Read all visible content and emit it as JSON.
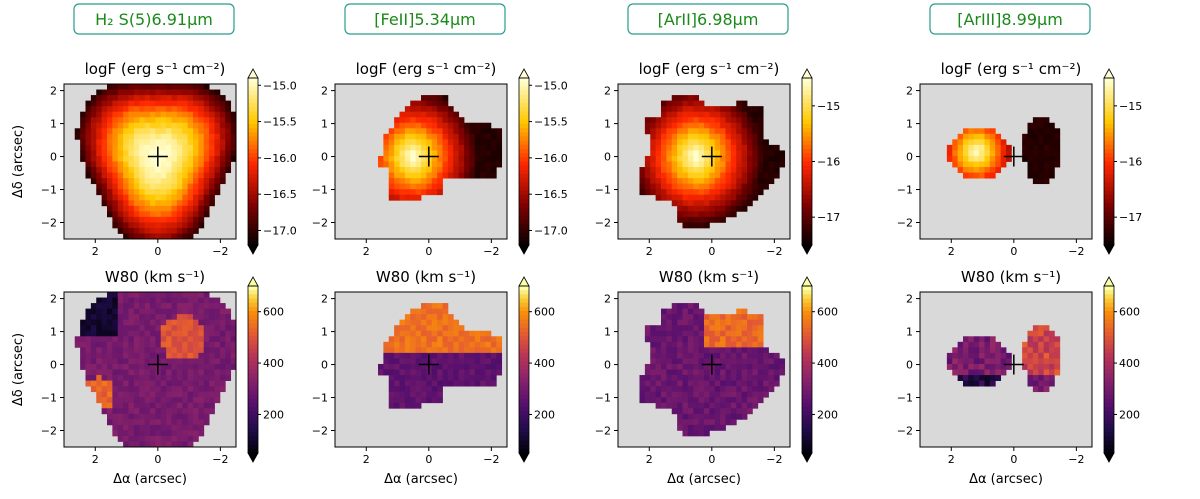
{
  "figure": {
    "colors": {
      "background": "#d9d9d9",
      "line_label": "#1a8a1a",
      "label_box": "#2a9d8f"
    }
  },
  "chart_data": [
    {
      "type": "heatmap",
      "column": 1,
      "line_label": "H₂ S(5)6.91μm",
      "panels": [
        {
          "quantity": "flux",
          "title": "logF (erg s⁻¹ cm⁻²)",
          "colorscale": "hot",
          "clim": [
            -17.2,
            -14.9
          ],
          "colorbar_ticks": [
            -15.0,
            -15.5,
            -16.0,
            -16.5,
            -17.0
          ],
          "colorbar_tick_labels": [
            "−15.0",
            "−15.5",
            "−16.0",
            "−16.5",
            "−17.0"
          ],
          "ylabel": "Δδ (arcsec)",
          "xlabel": "",
          "xlim": [
            3.0,
            -2.5
          ],
          "ylim": [
            -2.5,
            2.2
          ],
          "xticks": [
            2,
            0,
            -2
          ],
          "yticks": [
            2,
            1,
            0,
            -1,
            -2
          ],
          "xtick_labels": [
            "2",
            "0",
            "−2"
          ],
          "ytick_labels": [
            "2",
            "1",
            "0",
            "−1",
            "−2"
          ],
          "center_marker": [
            0,
            0
          ]
        },
        {
          "quantity": "W80",
          "title": "W80 (km s⁻¹)",
          "colorscale": "inferno",
          "clim": [
            50,
            700
          ],
          "colorbar_ticks": [
            600,
            400,
            200
          ],
          "colorbar_tick_labels": [
            "600",
            "400",
            "200"
          ],
          "ylabel": "Δδ (arcsec)",
          "xlabel": "Δα (arcsec)",
          "xlim": [
            3.0,
            -2.5
          ],
          "ylim": [
            -2.5,
            2.2
          ],
          "xticks": [
            2,
            0,
            -2
          ],
          "yticks": [
            2,
            1,
            0,
            -1,
            -2
          ],
          "xtick_labels": [
            "2",
            "0",
            "−2"
          ],
          "ytick_labels": [
            "2",
            "1",
            "0",
            "−1",
            "−2"
          ],
          "center_marker": [
            0,
            0
          ]
        }
      ]
    },
    {
      "type": "heatmap",
      "column": 2,
      "line_label": "[FeII]5.34μm",
      "panels": [
        {
          "quantity": "flux",
          "title": "logF (erg s⁻¹ cm⁻²)",
          "colorscale": "hot",
          "clim": [
            -17.2,
            -14.9
          ],
          "colorbar_ticks": [
            -15.0,
            -15.5,
            -16.0,
            -16.5,
            -17.0
          ],
          "colorbar_tick_labels": [
            "−15.0",
            "−15.5",
            "−16.0",
            "−16.5",
            "−17.0"
          ],
          "ylabel": "",
          "xlabel": "",
          "xlim": [
            3.0,
            -2.5
          ],
          "ylim": [
            -2.5,
            2.2
          ],
          "xticks": [
            2,
            0,
            -2
          ],
          "yticks": [
            2,
            1,
            0,
            -1,
            -2
          ],
          "xtick_labels": [
            "2",
            "0",
            "−2"
          ],
          "ytick_labels": [
            "2",
            "1",
            "0",
            "−1",
            "−2"
          ],
          "center_marker": [
            0,
            0
          ]
        },
        {
          "quantity": "W80",
          "title": "W80 (km s⁻¹)",
          "colorscale": "inferno",
          "clim": [
            50,
            700
          ],
          "colorbar_ticks": [
            600,
            400,
            200
          ],
          "colorbar_tick_labels": [
            "600",
            "400",
            "200"
          ],
          "ylabel": "",
          "xlabel": "Δα (arcsec)",
          "xlim": [
            3.0,
            -2.5
          ],
          "ylim": [
            -2.5,
            2.2
          ],
          "xticks": [
            2,
            0,
            -2
          ],
          "yticks": [
            2,
            1,
            0,
            -1,
            -2
          ],
          "xtick_labels": [
            "2",
            "0",
            "−2"
          ],
          "ytick_labels": [
            "2",
            "1",
            "0",
            "−1",
            "−2"
          ],
          "center_marker": [
            0,
            0
          ]
        }
      ]
    },
    {
      "type": "heatmap",
      "column": 3,
      "line_label": "[ArII]6.98μm",
      "panels": [
        {
          "quantity": "flux",
          "title": "logF (erg s⁻¹ cm⁻²)",
          "colorscale": "hot",
          "clim": [
            -17.5,
            -14.5
          ],
          "colorbar_ticks": [
            -15,
            -16,
            -17
          ],
          "colorbar_tick_labels": [
            "−15",
            "−16",
            "−17"
          ],
          "ylabel": "",
          "xlabel": "",
          "xlim": [
            3.0,
            -2.5
          ],
          "ylim": [
            -2.5,
            2.2
          ],
          "xticks": [
            2,
            0,
            -2
          ],
          "yticks": [
            2,
            1,
            0,
            -1,
            -2
          ],
          "xtick_labels": [
            "2",
            "0",
            "−2"
          ],
          "ytick_labels": [
            "2",
            "1",
            "0",
            "−1",
            "−2"
          ],
          "center_marker": [
            0,
            0
          ]
        },
        {
          "quantity": "W80",
          "title": "W80 (km s⁻¹)",
          "colorscale": "inferno",
          "clim": [
            50,
            700
          ],
          "colorbar_ticks": [
            600,
            400,
            200
          ],
          "colorbar_tick_labels": [
            "600",
            "400",
            "200"
          ],
          "ylabel": "",
          "xlabel": "Δα (arcsec)",
          "xlim": [
            3.0,
            -2.5
          ],
          "ylim": [
            -2.5,
            2.2
          ],
          "xticks": [
            2,
            0,
            -2
          ],
          "yticks": [
            2,
            1,
            0,
            -1,
            -2
          ],
          "xtick_labels": [
            "2",
            "0",
            "−2"
          ],
          "ytick_labels": [
            "2",
            "1",
            "0",
            "−1",
            "−2"
          ],
          "center_marker": [
            0,
            0
          ]
        }
      ]
    },
    {
      "type": "heatmap",
      "column": 4,
      "line_label": "[ArIII]8.99μm",
      "panels": [
        {
          "quantity": "flux",
          "title": "logF (erg s⁻¹ cm⁻²)",
          "colorscale": "hot",
          "clim": [
            -17.5,
            -14.5
          ],
          "colorbar_ticks": [
            -15,
            -16,
            -17
          ],
          "colorbar_tick_labels": [
            "−15",
            "−16",
            "−17"
          ],
          "ylabel": "",
          "xlabel": "",
          "xlim": [
            3.0,
            -2.5
          ],
          "ylim": [
            -2.5,
            2.2
          ],
          "xticks": [
            2,
            0,
            -2
          ],
          "yticks": [
            2,
            1,
            0,
            -1,
            -2
          ],
          "xtick_labels": [
            "2",
            "0",
            "−2"
          ],
          "ytick_labels": [
            "2",
            "1",
            "0",
            "−1",
            "−2"
          ],
          "center_marker": [
            0,
            0
          ]
        },
        {
          "quantity": "W80",
          "title": "W80 (km s⁻¹)",
          "colorscale": "inferno",
          "clim": [
            50,
            700
          ],
          "colorbar_ticks": [
            600,
            400,
            200
          ],
          "colorbar_tick_labels": [
            "600",
            "400",
            "200"
          ],
          "ylabel": "",
          "xlabel": "Δα (arcsec)",
          "xlim": [
            3.0,
            -2.5
          ],
          "ylim": [
            -2.5,
            2.2
          ],
          "xticks": [
            2,
            0,
            -2
          ],
          "yticks": [
            2,
            1,
            0,
            -1,
            -2
          ],
          "xtick_labels": [
            "2",
            "0",
            "−2"
          ],
          "ytick_labels": [
            "2",
            "1",
            "0",
            "−1",
            "−2"
          ],
          "center_marker": [
            0,
            0
          ]
        }
      ]
    }
  ]
}
